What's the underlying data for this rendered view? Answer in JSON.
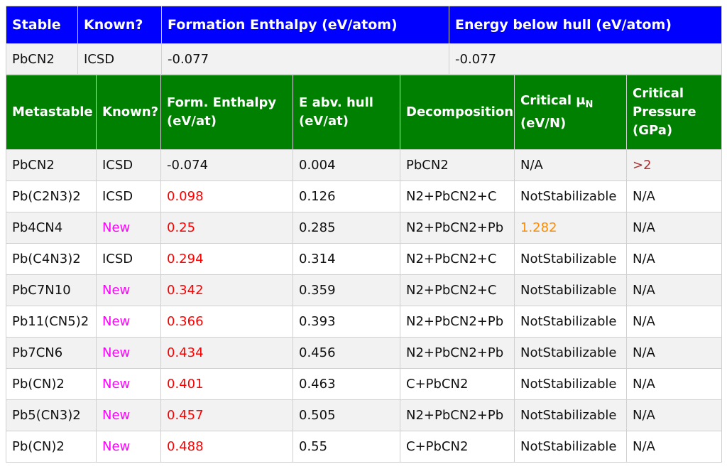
{
  "colors": {
    "stable_header": "#0000ff",
    "metastable_header": "#008000",
    "positive_enthalpy": "#ff0000",
    "new_label": "#ff00ff",
    "critical_mu_value": "#ff8c00",
    "critical_pressure_value": "#b03030"
  },
  "stable": {
    "headers": [
      "Stable",
      "Known?",
      "Formation Enthalpy (eV/atom)",
      "Energy below hull (eV/atom)"
    ],
    "row": [
      "PbCN2",
      "ICSD",
      "-0.077",
      "-0.077"
    ]
  },
  "metastable": {
    "headers": {
      "col0": "Metastable",
      "col1": "Known?",
      "col2": "Form. Enthalpy (eV/at)",
      "col3": "E abv. hull (eV/at)",
      "col4": "Decomposition",
      "col5_main": "Critical μ",
      "col5_sub": "N",
      "col5_unit": "(eV/N)",
      "col6": "Critical Pressure (GPa)"
    },
    "rows": [
      [
        "PbCN2",
        "ICSD",
        "-0.074",
        "0.004",
        "PbCN2",
        "N/A",
        ">2"
      ],
      [
        "Pb(C2N3)2",
        "ICSD",
        "0.098",
        "0.126",
        "N2+PbCN2+C",
        "NotStabilizable",
        "N/A"
      ],
      [
        "Pb4CN4",
        "New",
        "0.25",
        "0.285",
        "N2+PbCN2+Pb",
        "1.282",
        "N/A"
      ],
      [
        "Pb(C4N3)2",
        "ICSD",
        "0.294",
        "0.314",
        "N2+PbCN2+C",
        "NotStabilizable",
        "N/A"
      ],
      [
        "PbC7N10",
        "New",
        "0.342",
        "0.359",
        "N2+PbCN2+C",
        "NotStabilizable",
        "N/A"
      ],
      [
        "Pb11(CN5)2",
        "New",
        "0.366",
        "0.393",
        "N2+PbCN2+Pb",
        "NotStabilizable",
        "N/A"
      ],
      [
        "Pb7CN6",
        "New",
        "0.434",
        "0.456",
        "N2+PbCN2+Pb",
        "NotStabilizable",
        "N/A"
      ],
      [
        "Pb(CN)2",
        "New",
        "0.401",
        "0.463",
        "C+PbCN2",
        "NotStabilizable",
        "N/A"
      ],
      [
        "Pb5(CN3)2",
        "New",
        "0.457",
        "0.505",
        "N2+PbCN2+Pb",
        "NotStabilizable",
        "N/A"
      ],
      [
        "Pb(CN)2",
        "New",
        "0.488",
        "0.55",
        "C+PbCN2",
        "NotStabilizable",
        "N/A"
      ]
    ]
  }
}
